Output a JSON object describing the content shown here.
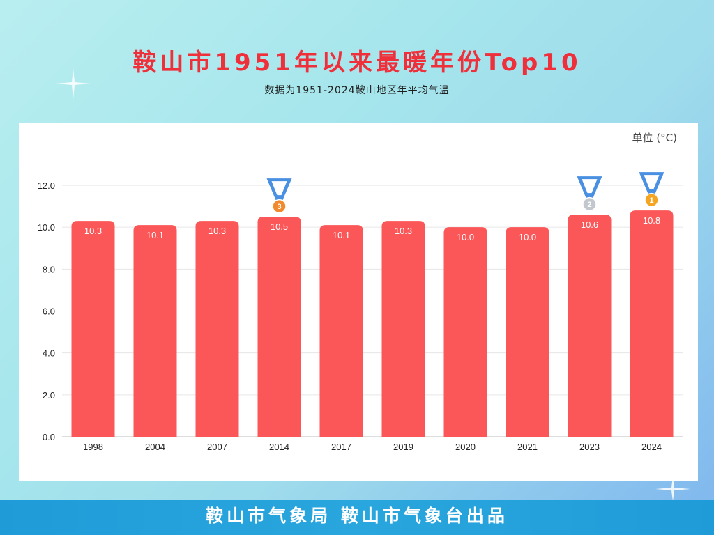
{
  "header": {
    "title": "鞍山市1951年以来最暖年份Top10",
    "subtitle": "数据为1951-2024鞍山地区年平均气温"
  },
  "footer": {
    "text": "鞍山市气象局 鞍山市气象台出品"
  },
  "colors": {
    "bar": "#fb5758",
    "title": "#ef2f3a",
    "footer_bg": "#1f9bd8",
    "medal_gold": "#f4a623",
    "medal_silver": "#c3c8cf",
    "medal_bronze": "#f08a2c",
    "ribbon": "#4a90e2"
  },
  "chart_data": {
    "type": "bar",
    "unit_label": "单位 (°C)",
    "categories": [
      "1998",
      "2004",
      "2007",
      "2014",
      "2017",
      "2019",
      "2020",
      "2021",
      "2023",
      "2024"
    ],
    "values": [
      10.3,
      10.1,
      10.3,
      10.5,
      10.1,
      10.3,
      10.0,
      10.0,
      10.6,
      10.8
    ],
    "value_labels": [
      "10.3",
      "10.1",
      "10.3",
      "10.5",
      "10.1",
      "10.3",
      "10.0",
      "10.0",
      "10.6",
      "10.8"
    ],
    "y_ticks": [
      "0.0",
      "2.0",
      "4.0",
      "6.0",
      "8.0",
      "10.0",
      "12.0"
    ],
    "ylim": [
      0,
      12
    ],
    "grid": true,
    "medals": [
      {
        "category": "2024",
        "rank": "1",
        "color": "#f4a623"
      },
      {
        "category": "2023",
        "rank": "2",
        "color": "#c3c8cf"
      },
      {
        "category": "2014",
        "rank": "3",
        "color": "#f08a2c"
      }
    ]
  }
}
